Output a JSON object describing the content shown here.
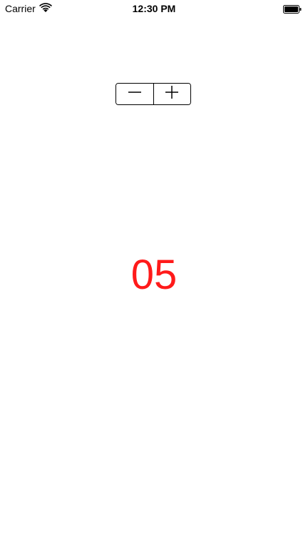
{
  "status_bar": {
    "carrier": "Carrier",
    "time": "12:30 PM"
  },
  "stepper": {
    "decrement_icon": "minus-icon",
    "increment_icon": "plus-icon"
  },
  "counter": {
    "value": "05",
    "color": "#ff1a1a"
  }
}
